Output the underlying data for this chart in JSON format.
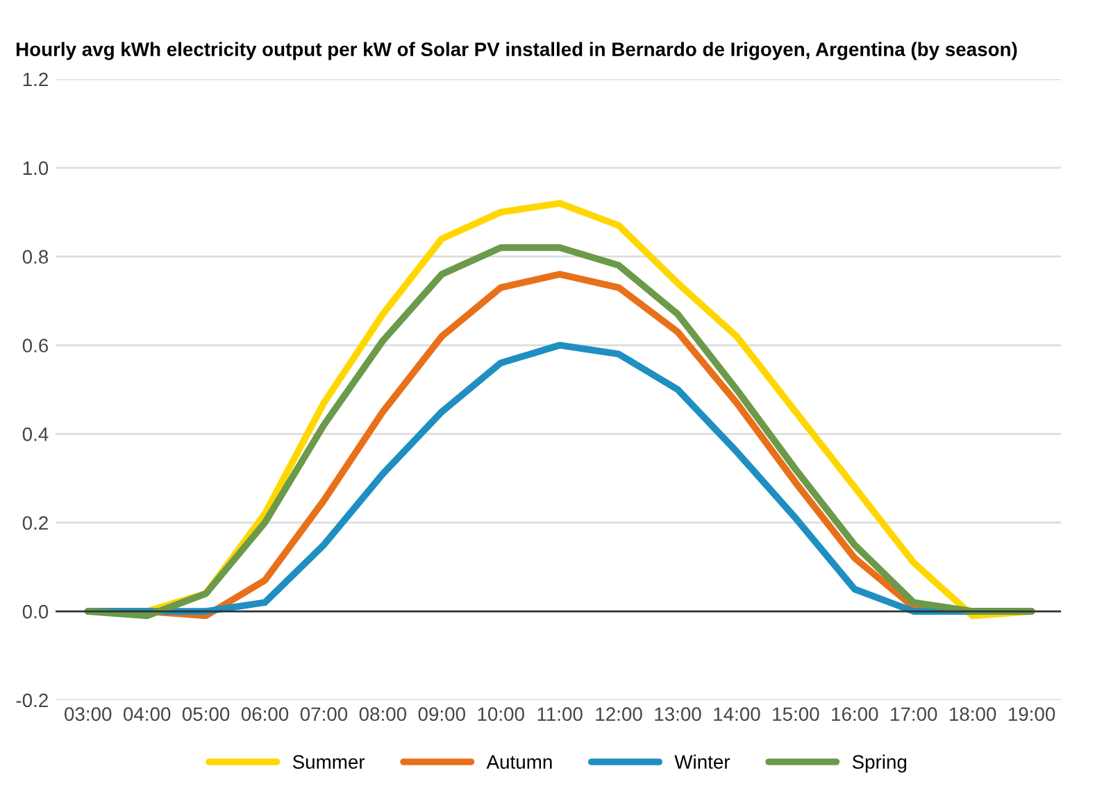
{
  "chart_data": {
    "type": "line",
    "title": "Hourly avg kWh electricity output per kW of Solar PV installed in Bernardo de Irigoyen, Argentina (by season)",
    "x": [
      3,
      4,
      5,
      6,
      7,
      8,
      9,
      10,
      11,
      12,
      13,
      14,
      15,
      16,
      17,
      18,
      19
    ],
    "series": [
      {
        "name": "Summer",
        "color": "#ffd700",
        "values": [
          0,
          0,
          0.04,
          0.22,
          0.47,
          0.67,
          0.84,
          0.9,
          0.92,
          0.87,
          0.74,
          0.62,
          0.45,
          0.28,
          0.11,
          -0.01,
          0
        ]
      },
      {
        "name": "Autumn",
        "color": "#e8701a",
        "values": [
          0,
          0,
          -0.01,
          0.07,
          0.25,
          0.45,
          0.62,
          0.73,
          0.76,
          0.73,
          0.63,
          0.47,
          0.29,
          0.12,
          0.01,
          0,
          0
        ]
      },
      {
        "name": "Winter",
        "color": "#1f8fc1",
        "values": [
          0,
          0,
          0,
          0.02,
          0.15,
          0.31,
          0.45,
          0.56,
          0.6,
          0.58,
          0.5,
          0.36,
          0.21,
          0.05,
          0,
          0,
          0
        ]
      },
      {
        "name": "Spring",
        "color": "#6a9a4a",
        "values": [
          0,
          -0.01,
          0.04,
          0.2,
          0.42,
          0.61,
          0.76,
          0.82,
          0.82,
          0.78,
          0.67,
          0.5,
          0.32,
          0.15,
          0.02,
          0,
          0
        ]
      }
    ],
    "xlim": [
      2.45,
      19.5
    ],
    "xticks": [
      {
        "value": 3,
        "label": "03:00"
      },
      {
        "value": 4,
        "label": "04:00"
      },
      {
        "value": 5,
        "label": "05:00"
      },
      {
        "value": 6,
        "label": "06:00"
      },
      {
        "value": 7,
        "label": "07:00"
      },
      {
        "value": 8,
        "label": "08:00"
      },
      {
        "value": 9,
        "label": "09:00"
      },
      {
        "value": 10,
        "label": "10:00"
      },
      {
        "value": 11,
        "label": "11:00"
      },
      {
        "value": 12,
        "label": "12:00"
      },
      {
        "value": 13,
        "label": "13:00"
      },
      {
        "value": 14,
        "label": "14:00"
      },
      {
        "value": 15,
        "label": "15:00"
      },
      {
        "value": 16,
        "label": "16:00"
      },
      {
        "value": 17,
        "label": "17:00"
      },
      {
        "value": 18,
        "label": "18:00"
      },
      {
        "value": 19,
        "label": "19:00"
      }
    ],
    "ylim": [
      -0.2,
      1.2
    ],
    "yticks": [
      {
        "value": -0.2,
        "label": "-0.2"
      },
      {
        "value": 0,
        "label": "0.0"
      },
      {
        "value": 0.2,
        "label": "0.2"
      },
      {
        "value": 0.4,
        "label": "0.4"
      },
      {
        "value": 0.6,
        "label": "0.6"
      },
      {
        "value": 0.8,
        "label": "0.8"
      },
      {
        "value": 1,
        "label": "1.0"
      },
      {
        "value": 1.2,
        "label": "1.2"
      }
    ],
    "grid": "y",
    "legend": "bottom",
    "marker": "none",
    "line_style": "solid"
  }
}
